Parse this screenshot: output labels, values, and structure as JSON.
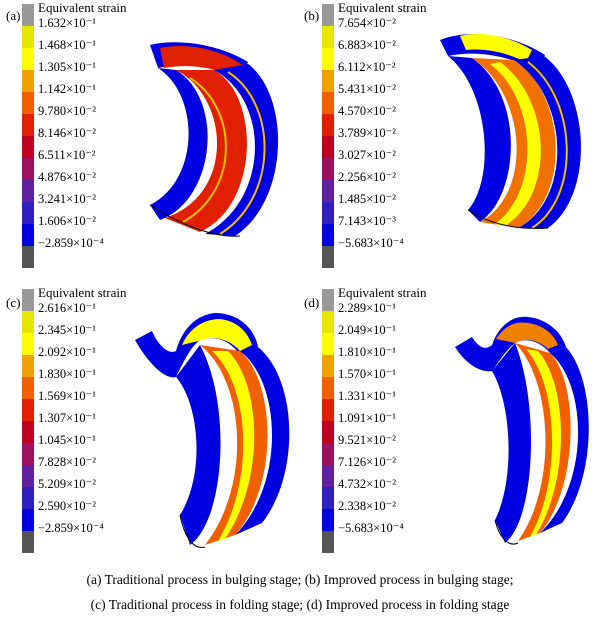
{
  "colors": {
    "bands": [
      "#999999",
      "#e6e600",
      "#ffff00",
      "#f0a000",
      "#f06000",
      "#e02000",
      "#c00020",
      "#a01060",
      "#6020a0",
      "#3020c0",
      "#0000e0",
      "#555555"
    ]
  },
  "panels": [
    {
      "id": "a",
      "label": "(a)",
      "legend_title": "Equivalent strain",
      "ticks": [
        "1.632×10⁻¹",
        "1.468×10⁻¹",
        "1.305×10⁻¹",
        "1.142×10⁻¹",
        "9.780×10⁻²",
        "8.146×10⁻²",
        "6.511×10⁻²",
        "4.876×10⁻²",
        "3.241×10⁻²",
        "1.606×10⁻²",
        "−2.859×10⁻⁴"
      ]
    },
    {
      "id": "b",
      "label": "(b)",
      "legend_title": "Equivalent strain",
      "ticks": [
        "7.654×10⁻²",
        "6.883×10⁻²",
        "6.112×10⁻²",
        "5.431×10⁻²",
        "4.570×10⁻²",
        "3.789×10⁻²",
        "3.027×10⁻²",
        "2.256×10⁻²",
        "1.485×10⁻²",
        "7.143×10⁻³",
        "−5.683×10⁻⁴"
      ]
    },
    {
      "id": "c",
      "label": "(c)",
      "legend_title": "Equivalent strain",
      "ticks": [
        "2.616×10⁻¹",
        "2.345×10⁻¹",
        "2.092×10⁻¹",
        "1.830×10⁻¹",
        "1.569×10⁻¹",
        "1.307×10⁻¹",
        "1.045×10⁻¹",
        "7.828×10⁻²",
        "5.209×10⁻²",
        "2.590×10⁻²",
        "−2.859×10⁻⁴"
      ]
    },
    {
      "id": "d",
      "label": "(d)",
      "legend_title": "Equivalent strain",
      "ticks": [
        "2.289×10⁻¹",
        "2.049×10⁻¹",
        "1.810×10⁻¹",
        "1.570×10⁻¹",
        "1.331×10⁻¹",
        "1.091×10⁻¹",
        "9.521×10⁻²",
        "7.126×10⁻²",
        "4.732×10⁻²",
        "2.338×10⁻²",
        "−5.683×10⁻⁴"
      ]
    }
  ],
  "caption": {
    "line1": "(a)  Traditional  process  in  bulging  stage;  (b)  Improved  process in bulging stage;",
    "line2": "(c) Traditional process in folding stage; (d) Improved process in folding stage"
  }
}
